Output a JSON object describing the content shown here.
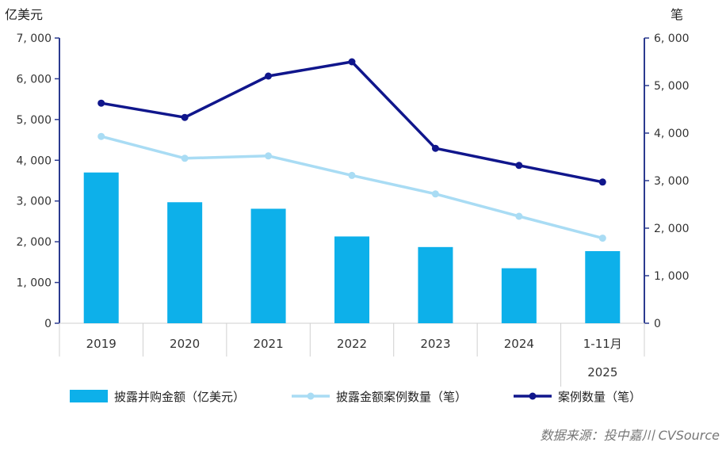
{
  "chart_data": {
    "type": "bar",
    "categories": [
      "2019",
      "2020",
      "2021",
      "2022",
      "2023",
      "2024",
      "1-11月"
    ],
    "category_sublabel": "2025",
    "y_left": {
      "unit": "亿美元",
      "lim": [
        0,
        7000
      ],
      "ticks": [
        "0",
        "1, 000",
        "2, 000",
        "3, 000",
        "4, 000",
        "5, 000",
        "6, 000",
        "7, 000"
      ]
    },
    "y_right": {
      "unit": "笔",
      "lim": [
        0,
        6000
      ],
      "ticks": [
        "0",
        "1, 000",
        "2, 000",
        "3, 000",
        "4, 000",
        "5, 000",
        "6, 000"
      ]
    },
    "series": [
      {
        "name": "披露并购金额（亿美元）",
        "type": "bar",
        "axis": "left",
        "color": "#0db0ea",
        "values": [
          3700,
          2970,
          2810,
          2130,
          1870,
          1350,
          1770
        ]
      },
      {
        "name": "披露金额案例数量（笔）",
        "type": "line",
        "axis": "right",
        "color": "#a9dcf4",
        "values": [
          3930,
          3470,
          3520,
          3110,
          2720,
          2250,
          1790
        ]
      },
      {
        "name": "案例数量（笔）",
        "type": "line",
        "axis": "right",
        "color": "#10168c",
        "values": [
          4630,
          4330,
          5200,
          5500,
          3680,
          3320,
          2970
        ]
      }
    ],
    "grid": false,
    "legend_position": "bottom"
  },
  "source": "数据来源：投中嘉川 CVSource"
}
